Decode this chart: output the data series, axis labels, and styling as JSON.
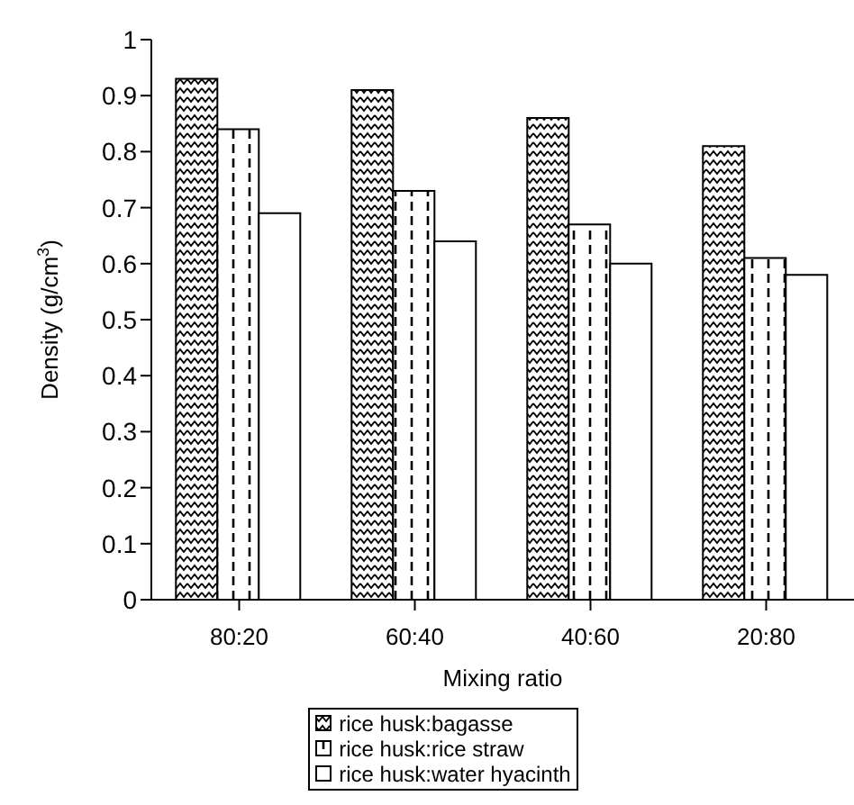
{
  "chart_data": {
    "type": "bar",
    "xlabel": "Mixing ratio",
    "ylabel": "Density (g/cm$^{3}$)",
    "categories": [
      "80:20",
      "60:40",
      "40:60",
      "20:80"
    ],
    "series": [
      {
        "name": "rice husk:bagasse",
        "color": "#000000",
        "values": [
          0.93,
          0.91,
          0.86,
          0.81
        ]
      },
      {
        "name": "rice husk:rice straw",
        "color": "#000000",
        "values": [
          0.84,
          0.73,
          0.67,
          0.61
        ]
      },
      {
        "name": "rice husk:water hyacinth",
        "color": "#000000",
        "values": [
          0.69,
          0.64,
          0.6,
          0.58
        ]
      }
    ],
    "ylim": [
      0,
      1
    ],
    "yticks": [
      0,
      0.1,
      0.2,
      0.3,
      0.4,
      0.5,
      0.6,
      0.7,
      0.8,
      0.9,
      1
    ],
    "grid": false,
    "legend": "bottom"
  }
}
